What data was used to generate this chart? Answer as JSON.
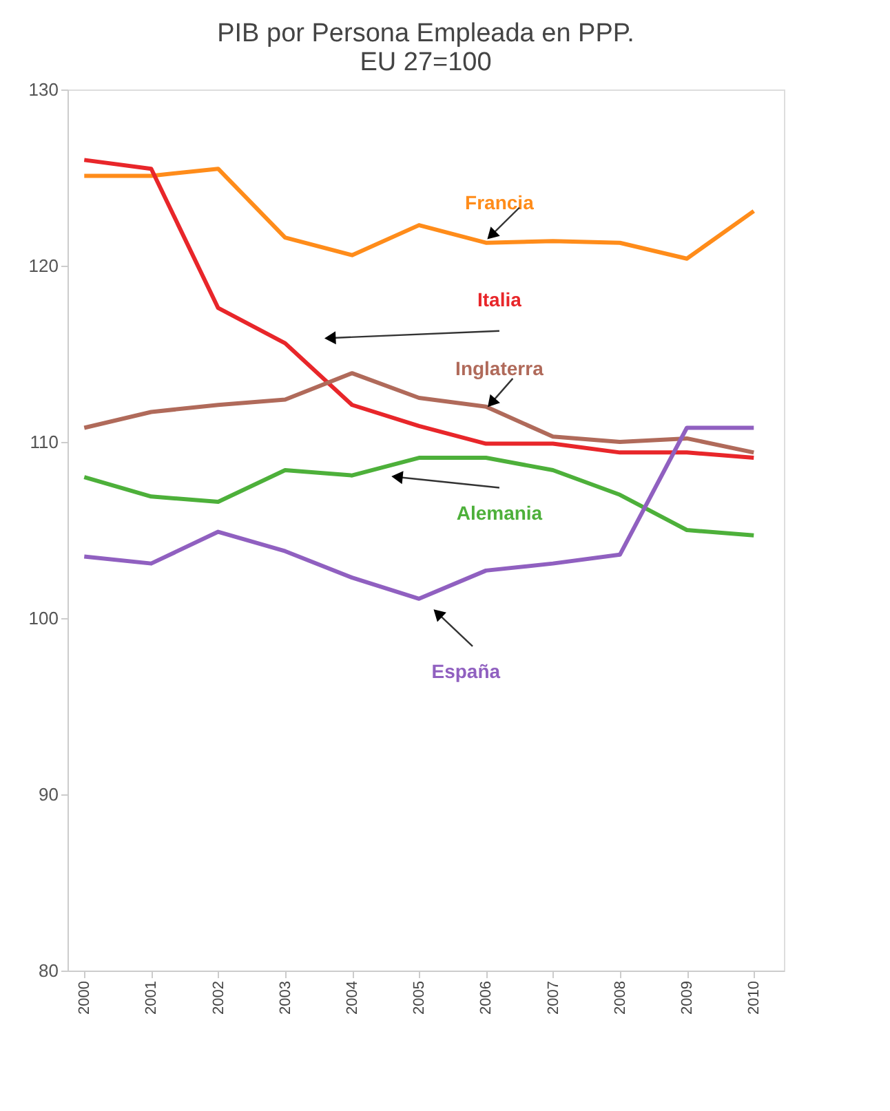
{
  "chart_data": {
    "type": "line",
    "title": [
      "PIB por Persona Empleada en PPP.",
      "EU 27=100"
    ],
    "x": [
      2000,
      2001,
      2002,
      2003,
      2004,
      2005,
      2006,
      2007,
      2008,
      2009,
      2010
    ],
    "xlim": [
      1999.75,
      2010.45
    ],
    "xticks": [
      2000,
      2001,
      2002,
      2003,
      2004,
      2005,
      2006,
      2007,
      2008,
      2009,
      2010
    ],
    "ylim": [
      80,
      130
    ],
    "yticks": [
      80,
      90,
      100,
      110,
      120,
      130
    ],
    "grid": false,
    "marker": "none",
    "line_style": "solid",
    "series": [
      {
        "name": "Francia",
        "color": "#ff8c1a",
        "values": [
          125.1,
          125.1,
          125.5,
          121.6,
          120.6,
          122.3,
          121.3,
          121.4,
          121.3,
          120.4,
          123.1
        ]
      },
      {
        "name": "Italia",
        "color": "#e8262a",
        "values": [
          126.0,
          125.5,
          117.6,
          115.6,
          112.1,
          110.9,
          109.9,
          109.9,
          109.4,
          109.4,
          109.1
        ]
      },
      {
        "name": "Inglaterra",
        "color": "#b06a5a",
        "values": [
          110.8,
          111.7,
          112.1,
          112.4,
          113.9,
          112.5,
          112.0,
          110.3,
          110.0,
          110.2,
          109.4
        ]
      },
      {
        "name": "Alemania",
        "color": "#4db03a",
        "values": [
          108.0,
          106.9,
          106.6,
          108.4,
          108.1,
          109.1,
          109.1,
          108.4,
          107.0,
          105.0,
          104.7
        ]
      },
      {
        "name": "España",
        "color": "#9060c0",
        "values": [
          103.5,
          103.1,
          104.9,
          103.8,
          102.3,
          101.1,
          102.7,
          103.1,
          103.6,
          110.8,
          110.8
        ]
      }
    ]
  }
}
